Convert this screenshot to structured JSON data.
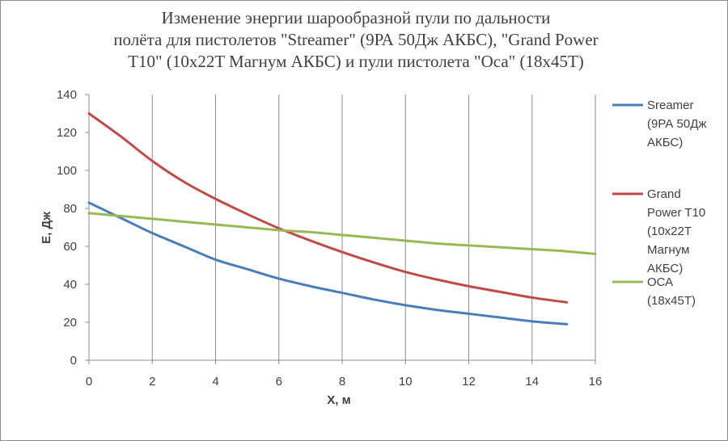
{
  "chart_data": {
    "type": "line",
    "title_lines": [
      "Изменение энергии шарообразной пули  по дальности",
      "полёта для пистолетов \"Streamer\" (9РА 50Дж АКБС), \"Grand Power",
      "T10\" (10x22T Магнум АКБС) и пули пистолета \"Оса\" (18x45T)"
    ],
    "xlabel": "X, м",
    "ylabel": "E, Дж",
    "xlim": [
      0,
      16
    ],
    "ylim": [
      0,
      140
    ],
    "xticks": [
      "0",
      "2",
      "4",
      "6",
      "8",
      "10",
      "12",
      "14",
      "16"
    ],
    "yticks": [
      "0",
      "20",
      "40",
      "60",
      "80",
      "100",
      "120",
      "140"
    ],
    "grid": "vertical",
    "legend_position": "right",
    "series": [
      {
        "name_lines": [
          "Sreamer",
          "(9РА 50Дж",
          "АКБС)"
        ],
        "color": "#4a7ebb",
        "x": [
          0,
          1,
          2,
          3,
          4,
          5,
          6,
          7,
          8,
          9,
          10,
          11,
          12,
          13,
          14,
          15.1
        ],
        "y": [
          83,
          75,
          67,
          60,
          53,
          48,
          43,
          39,
          35.5,
          32,
          29,
          26.5,
          24.5,
          22.5,
          20.5,
          19
        ]
      },
      {
        "name_lines": [
          "Grand",
          "Power T10",
          "(10x22T",
          "Магнум",
          "АКБС)"
        ],
        "color": "#be4b48",
        "x": [
          0,
          1,
          2,
          3,
          4,
          5,
          6,
          7,
          8,
          9,
          10,
          11,
          12,
          13,
          14,
          15.1
        ],
        "y": [
          130,
          118,
          105,
          94,
          85,
          77,
          69.5,
          63,
          57,
          51.5,
          46.5,
          42.5,
          39,
          36,
          33,
          30.5
        ]
      },
      {
        "name_lines": [
          "ОСА",
          "(18x45T)"
        ],
        "color": "#98b954",
        "x": [
          0,
          1,
          2,
          3,
          4,
          5,
          6,
          7,
          8,
          9,
          10,
          11,
          12,
          13,
          14,
          15,
          16
        ],
        "y": [
          77.5,
          76,
          74.5,
          73,
          71.5,
          70,
          68.5,
          67.5,
          66,
          64.5,
          63,
          61.5,
          60.5,
          59.5,
          58.5,
          57.5,
          56
        ]
      }
    ]
  }
}
